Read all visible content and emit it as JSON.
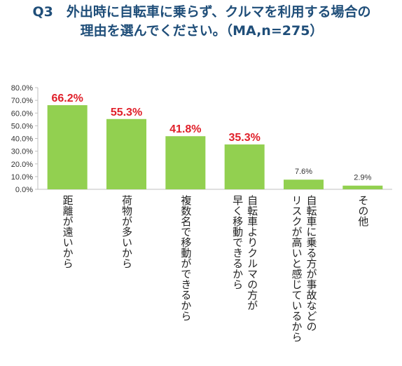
{
  "chart_data": {
    "type": "bar",
    "title": [
      "Q3　外出時に自転車に乗らず、クルマを利用する場合の",
      "理由を選んでください。（MA,n=275）"
    ],
    "categories": [
      [
        "距離が遠いから"
      ],
      [
        "荷物が多いから"
      ],
      [
        "複数名で移動ができるから"
      ],
      [
        "自転車よりクルマの方が",
        "早く移動できるから"
      ],
      [
        "自転車に乗る方が事故などの",
        "リスクが高いと感じているから"
      ],
      [
        "その他"
      ]
    ],
    "values": [
      66.2,
      55.3,
      41.8,
      35.3,
      7.6,
      2.9
    ],
    "value_labels": [
      "66.2%",
      "55.3%",
      "41.8%",
      "35.3%",
      "7.6%",
      "2.9%"
    ],
    "y_ticks": [
      "0.0%",
      "10.0%",
      "20.0%",
      "30.0%",
      "40.0%",
      "50.0%",
      "60.0%",
      "70.0%",
      "80.0%"
    ],
    "ylim": [
      0,
      80
    ],
    "grid": false,
    "legend": "none",
    "colors": {
      "bar": "#92d050",
      "highlight_label": "#e0202a",
      "title": "#1f4e79",
      "axis": "#bfbfbf"
    }
  }
}
